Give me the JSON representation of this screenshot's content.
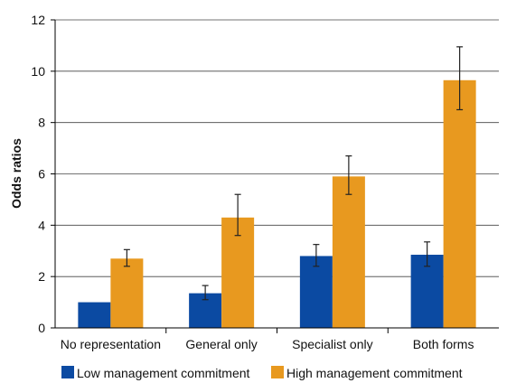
{
  "chart_data": {
    "type": "bar",
    "title": "",
    "xlabel": "",
    "ylabel": "Odds ratios",
    "ylim": [
      0,
      12
    ],
    "yticks": [
      0,
      2,
      4,
      6,
      8,
      10,
      12
    ],
    "grid": "horizontal",
    "legend_position": "bottom",
    "categories": [
      "No representation",
      "General only",
      "Specialist only",
      "Both forms"
    ],
    "series": [
      {
        "name": "Low management commitment",
        "color": "#0b4aa2",
        "values": [
          1.0,
          1.35,
          2.8,
          2.85
        ],
        "error_low": [
          null,
          1.1,
          2.4,
          2.4
        ],
        "error_high": [
          null,
          1.65,
          3.25,
          3.35
        ]
      },
      {
        "name": "High management commitment",
        "color": "#e8991f",
        "values": [
          2.7,
          4.3,
          5.9,
          9.65
        ],
        "error_low": [
          2.4,
          3.6,
          5.2,
          8.5
        ],
        "error_high": [
          3.05,
          5.2,
          6.7,
          10.95
        ]
      }
    ]
  }
}
